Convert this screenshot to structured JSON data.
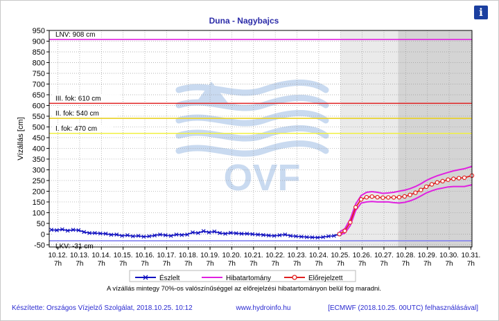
{
  "header": {
    "info_button": "i"
  },
  "chart_data": {
    "type": "line",
    "title": "Duna - Nagybajcs",
    "ylabel": "Vízállás [cm]",
    "ylim": [
      -60,
      950
    ],
    "yticks": [
      -50,
      0,
      50,
      100,
      150,
      200,
      250,
      300,
      350,
      400,
      450,
      500,
      550,
      600,
      650,
      700,
      750,
      800,
      850,
      900,
      950
    ],
    "x_tick_dates": [
      "10.12.",
      "10.13.",
      "10.14.",
      "10.15.",
      "10.16.",
      "10.17.",
      "10.18.",
      "10.19.",
      "10.20.",
      "10.21.",
      "10.22.",
      "10.23.",
      "10.24.",
      "10.25.",
      "10.26.",
      "10.27.",
      "10.28.",
      "10.29.",
      "10.30.",
      "10.31."
    ],
    "x_tick_hour": "7h",
    "x_range_days": [
      11.9,
      31.35
    ],
    "forecast_shading": [
      {
        "from_day": 25.3,
        "to_day": 27.95,
        "color": "#eaeaea"
      },
      {
        "from_day": 27.95,
        "to_day": 31.35,
        "color": "#d4d4d4"
      }
    ],
    "reference_levels": [
      {
        "label": "LNV: 908 cm",
        "value": 908,
        "color": "#e020e0"
      },
      {
        "label": "III. fok: 610 cm",
        "value": 610,
        "color": "#e02020"
      },
      {
        "label": "II. fok: 540 cm",
        "value": 540,
        "color": "#e8d020"
      },
      {
        "label": "I. fok: 470 cm",
        "value": 470,
        "color": "#f0f040"
      },
      {
        "label": "LKV: -31 cm",
        "value": -31,
        "color": "#8080f0"
      }
    ],
    "series": [
      {
        "name": "Észlelt",
        "color": "#1010c0",
        "x": [
          12.0,
          12.25,
          12.5,
          12.75,
          13.0,
          13.25,
          13.5,
          13.75,
          14.0,
          14.25,
          14.5,
          14.75,
          15.0,
          15.25,
          15.5,
          15.75,
          16.0,
          16.25,
          16.5,
          16.75,
          17.0,
          17.25,
          17.5,
          17.75,
          18.0,
          18.25,
          18.5,
          18.75,
          19.0,
          19.25,
          19.5,
          19.75,
          20.0,
          20.25,
          20.5,
          20.75,
          21.0,
          21.25,
          21.5,
          21.75,
          22.0,
          22.25,
          22.5,
          22.75,
          23.0,
          23.25,
          23.5,
          23.75,
          24.0,
          24.25,
          24.5,
          24.75,
          25.0,
          25.25
        ],
        "y": [
          20,
          18,
          22,
          16,
          20,
          18,
          10,
          5,
          5,
          3,
          2,
          -3,
          -2,
          -8,
          -5,
          -10,
          -8,
          -12,
          -10,
          -6,
          -2,
          -5,
          -8,
          -2,
          -4,
          -2,
          8,
          5,
          14,
          8,
          12,
          5,
          2,
          6,
          4,
          2,
          2,
          0,
          -2,
          -4,
          -6,
          -8,
          -5,
          -2,
          -8,
          -10,
          -12,
          -14,
          -15,
          -16,
          -14,
          -10,
          -8,
          0
        ]
      },
      {
        "name": "Hibatartomány",
        "color": "#e020e0",
        "x": [
          25.25,
          25.5,
          25.75,
          26.0,
          26.25,
          26.5,
          26.75,
          27.0,
          27.25,
          27.5,
          27.75,
          28.0,
          28.25,
          28.5,
          28.75,
          29.0,
          29.25,
          29.5,
          29.75,
          30.0,
          30.25,
          30.5,
          30.75,
          31.0,
          31.35
        ],
        "upper": [
          10,
          25,
          70,
          140,
          180,
          195,
          198,
          195,
          190,
          192,
          195,
          200,
          205,
          212,
          222,
          235,
          250,
          262,
          272,
          280,
          288,
          295,
          300,
          305,
          316
        ],
        "lower": [
          -5,
          5,
          40,
          110,
          145,
          150,
          152,
          150,
          150,
          150,
          147,
          145,
          148,
          155,
          165,
          178,
          192,
          202,
          210,
          215,
          220,
          222,
          222,
          222,
          230
        ]
      },
      {
        "name": "Előrejelzett",
        "color": "#e02020",
        "x": [
          25.25,
          25.5,
          25.75,
          26.0,
          26.25,
          26.5,
          26.75,
          27.0,
          27.25,
          27.5,
          27.75,
          28.0,
          28.25,
          28.5,
          28.75,
          29.0,
          29.25,
          29.5,
          29.75,
          30.0,
          30.25,
          30.5,
          30.75,
          31.0,
          31.35
        ],
        "y": [
          0,
          15,
          55,
          125,
          162,
          172,
          175,
          172,
          170,
          171,
          171,
          172,
          176,
          183,
          193,
          206,
          221,
          232,
          241,
          247,
          254,
          258,
          261,
          263,
          273
        ]
      }
    ],
    "legend_position": "bottom",
    "watermark": "OVF"
  },
  "note": "A vízállás mintegy 70%-os valószínűséggel az előrejelzési hibatartományon belül fog maradni.",
  "footer": {
    "left": "Készítette: Országos Vízjelző Szolgálat, 2018.10.25. 10:12",
    "center": "www.hydroinfo.hu",
    "right": "[ECMWF (2018.10.25. 00UTC) felhasználásával]"
  }
}
